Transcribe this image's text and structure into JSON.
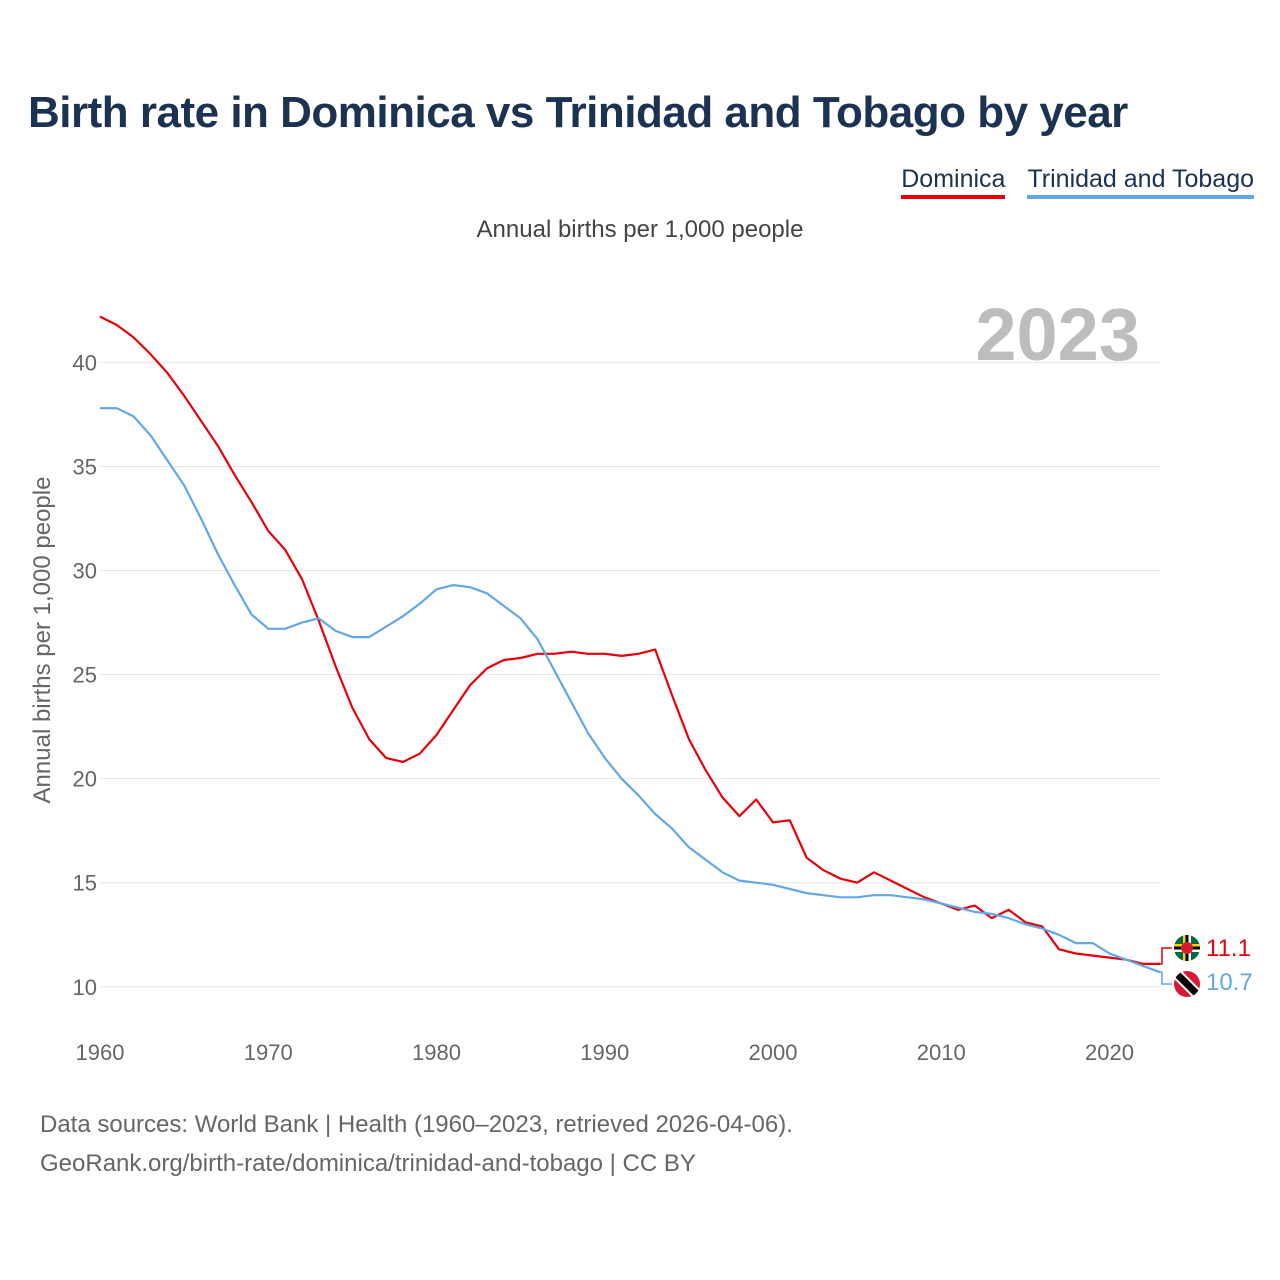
{
  "header": {
    "title": "Birth rate in Dominica vs Trinidad and Tobago by year",
    "subtitle": "Annual births per 1,000 people"
  },
  "legend": [
    {
      "label": "Dominica",
      "color": "#e8000b"
    },
    {
      "label": "Trinidad and Tobago",
      "color": "#62a8e8"
    }
  ],
  "footer": {
    "line1": "Data sources: World Bank | Health (1960–2023, retrieved 2026-04-06).",
    "line2": "GeoRank.org/birth-rate/dominica/trinidad-and-tobago | CC BY"
  },
  "chart_data": {
    "type": "line",
    "title": "Birth rate in Dominica vs Trinidad and Tobago by year",
    "ylabel": "Annual births per 1,000 people",
    "xlabel": "",
    "year_label": "2023",
    "xlim": [
      1960,
      2023
    ],
    "ylim": [
      8.5,
      43
    ],
    "x_ticks": [
      1960,
      1970,
      1980,
      1990,
      2000,
      2010,
      2020
    ],
    "y_ticks": [
      10,
      15,
      20,
      25,
      30,
      35,
      40
    ],
    "grid": true,
    "x": [
      1960,
      1961,
      1962,
      1963,
      1964,
      1965,
      1966,
      1967,
      1968,
      1969,
      1970,
      1971,
      1972,
      1973,
      1974,
      1975,
      1976,
      1977,
      1978,
      1979,
      1980,
      1981,
      1982,
      1983,
      1984,
      1985,
      1986,
      1987,
      1988,
      1989,
      1990,
      1991,
      1992,
      1993,
      1994,
      1995,
      1996,
      1997,
      1998,
      1999,
      2000,
      2001,
      2002,
      2003,
      2004,
      2005,
      2006,
      2007,
      2008,
      2009,
      2010,
      2011,
      2012,
      2013,
      2014,
      2015,
      2016,
      2017,
      2018,
      2019,
      2020,
      2021,
      2022,
      2023
    ],
    "series": [
      {
        "name": "Dominica",
        "color": "#e8000b",
        "end_label": "11.1",
        "values": [
          42.2,
          41.8,
          41.2,
          40.4,
          39.5,
          38.4,
          37.2,
          36.0,
          34.6,
          33.3,
          31.9,
          31.0,
          29.6,
          27.6,
          25.4,
          23.4,
          21.9,
          21.0,
          20.8,
          21.2,
          22.1,
          23.3,
          24.5,
          25.3,
          25.7,
          25.8,
          26.0,
          26.0,
          26.1,
          26.0,
          26.0,
          25.9,
          26.0,
          26.2,
          24.0,
          21.9,
          20.4,
          19.1,
          18.2,
          19.0,
          17.9,
          18.0,
          16.2,
          15.6,
          15.2,
          15.0,
          15.5,
          15.1,
          14.7,
          14.3,
          14.0,
          13.7,
          13.9,
          13.3,
          13.7,
          13.1,
          12.9,
          11.8,
          11.6,
          11.5,
          11.4,
          11.3,
          11.1,
          11.1
        ]
      },
      {
        "name": "Trinidad and Tobago",
        "color": "#62a8e8",
        "end_label": "10.7",
        "values": [
          37.8,
          37.8,
          37.4,
          36.5,
          35.3,
          34.1,
          32.5,
          30.8,
          29.3,
          27.9,
          27.2,
          27.2,
          27.5,
          27.7,
          27.1,
          26.8,
          26.8,
          27.3,
          27.8,
          28.4,
          29.1,
          29.3,
          29.2,
          28.9,
          28.3,
          27.7,
          26.7,
          25.2,
          23.7,
          22.2,
          21.0,
          20.0,
          19.2,
          18.3,
          17.6,
          16.7,
          16.1,
          15.5,
          15.1,
          15.0,
          14.9,
          14.7,
          14.5,
          14.4,
          14.3,
          14.3,
          14.4,
          14.4,
          14.3,
          14.2,
          14.0,
          13.8,
          13.6,
          13.5,
          13.3,
          13.0,
          12.8,
          12.5,
          12.1,
          12.1,
          11.6,
          11.3,
          11.0,
          10.7
        ]
      }
    ]
  }
}
